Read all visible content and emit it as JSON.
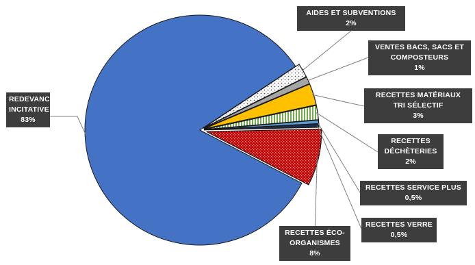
{
  "chart_data": {
    "type": "pie",
    "title": "",
    "slices": [
      {
        "key": "redevance",
        "lines": [
          "REDEVANCE",
          "INCITATIVE",
          "83%"
        ],
        "value": 83,
        "color": "#4472c4",
        "pattern": "solid"
      },
      {
        "key": "aides",
        "lines": [
          "AIDES ET SUBVENTIONS",
          "2%"
        ],
        "value": 2,
        "color": "#ffffff",
        "pattern": "dots"
      },
      {
        "key": "ventes",
        "lines": [
          "VENTES BACS, SACS ET",
          "COMPOSTEURS",
          "1%"
        ],
        "value": 1,
        "color": "#a6a6a6",
        "pattern": "solid"
      },
      {
        "key": "materiaux",
        "lines": [
          "RECETTES MATÉRIAUX",
          "TRI SÉLECTIF",
          "3%"
        ],
        "value": 3,
        "color": "#ffc000",
        "pattern": "solid"
      },
      {
        "key": "decheteries",
        "lines": [
          "RECETTES",
          "DÉCHÈTERIES",
          "2%"
        ],
        "value": 2,
        "color": "#a9d18e",
        "pattern": "vstripes"
      },
      {
        "key": "service_plus",
        "lines": [
          "RECETTES SERVICE PLUS",
          "0,5%"
        ],
        "value": 0.5,
        "color": "#5b9bd5",
        "pattern": "solid"
      },
      {
        "key": "verre",
        "lines": [
          "RECETTES VERRE",
          "0,5%"
        ],
        "value": 0.5,
        "color": "#1f2d4a",
        "pattern": "solid"
      },
      {
        "key": "eco",
        "lines": [
          "RECETTES ÉCO-",
          "ORGANISMES",
          "8%"
        ],
        "value": 8,
        "color": "#c00000",
        "pattern": "checker"
      }
    ]
  }
}
